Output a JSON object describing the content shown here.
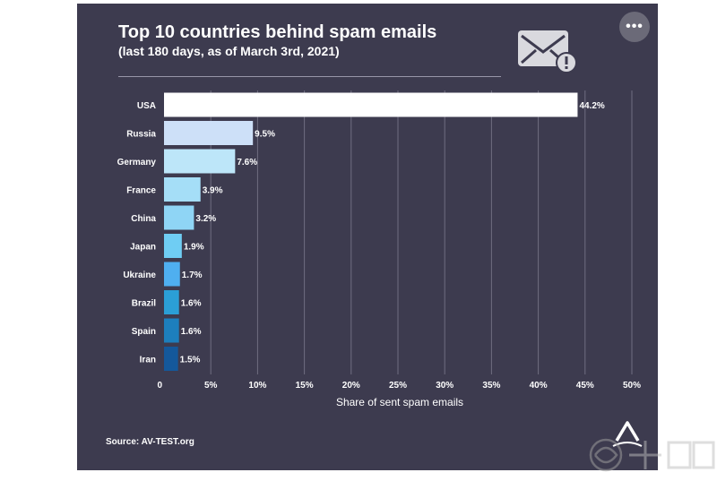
{
  "header": {
    "title": "Top 10 countries behind spam emails",
    "subtitle": "(last 180 days, as of March 3rd, 2021)"
  },
  "menu": {
    "label": "•••"
  },
  "icon": {
    "name": "email-warning-icon"
  },
  "source": "Source: AV-TEST.org",
  "brand": {
    "name": "axios",
    "icon": "axios-logo-icon"
  },
  "watermark": {
    "icon": "watermark-logo-icon"
  },
  "colors": {
    "background": "#3d3b4f",
    "text": "#ffffff",
    "gridline": "#6f6d80"
  },
  "chart_data": {
    "type": "bar",
    "orientation": "horizontal",
    "categories": [
      "USA",
      "Russia",
      "Germany",
      "France",
      "China",
      "Japan",
      "Ukraine",
      "Brazil",
      "Spain",
      "Iran"
    ],
    "values": [
      44.2,
      9.5,
      7.6,
      3.9,
      3.2,
      1.9,
      1.7,
      1.6,
      1.6,
      1.5
    ],
    "value_labels": [
      "44.2%",
      "9.5%",
      "7.6%",
      "3.9%",
      "3.2%",
      "1.9%",
      "1.7%",
      "1.6%",
      "1.6%",
      "1.5%"
    ],
    "bar_colors": [
      "#ffffff",
      "#cde0f8",
      "#bde6f9",
      "#a5def7",
      "#8fd5f5",
      "#6fcdf3",
      "#4faff0",
      "#2b9fd6",
      "#1d7fbd",
      "#14589b"
    ],
    "xticks": [
      0,
      5,
      10,
      15,
      20,
      25,
      30,
      35,
      40,
      45,
      50
    ],
    "xtick_labels": [
      "0",
      "5%",
      "10%",
      "15%",
      "20%",
      "25%",
      "30%",
      "35%",
      "40%",
      "45%",
      "50%"
    ],
    "xlim": [
      0,
      50
    ],
    "xlabel": "Share of sent spam emails",
    "grid": "vertical"
  }
}
